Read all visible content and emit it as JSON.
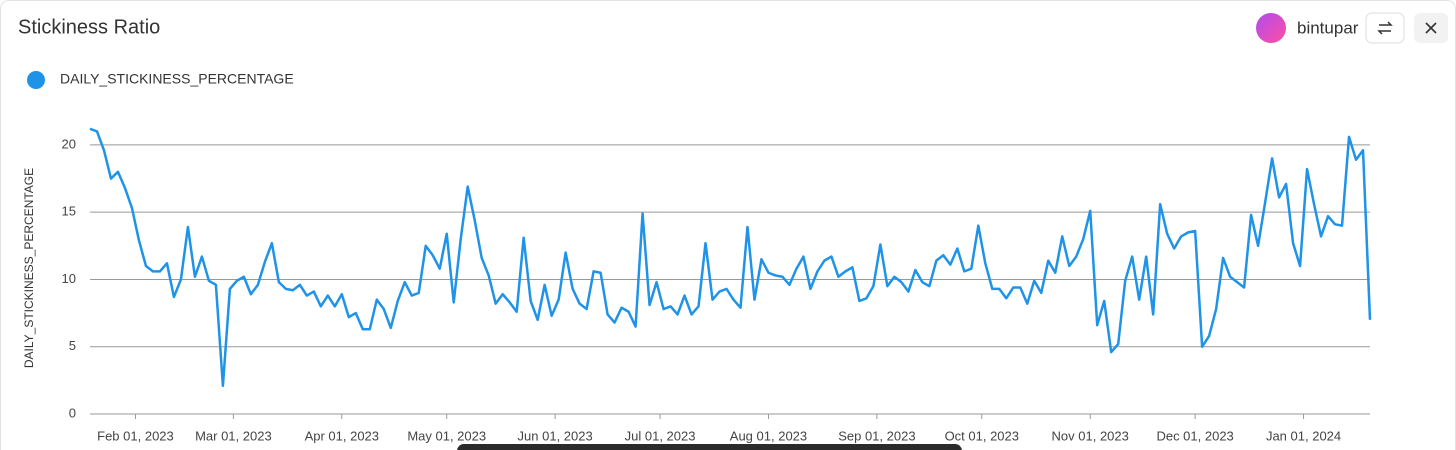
{
  "header": {
    "title": "Stickiness Ratio",
    "user": "bintupar"
  },
  "chart_data": {
    "type": "line",
    "y_label": "DAILY_STICKINESS_PERCENTAGE",
    "x": [
      "2023-01-19",
      "2023-01-21",
      "2023-01-23",
      "2023-01-25",
      "2023-01-27",
      "2023-01-29",
      "2023-01-31",
      "2023-02-02",
      "2023-02-04",
      "2023-02-06",
      "2023-02-08",
      "2023-02-10",
      "2023-02-12",
      "2023-02-14",
      "2023-02-16",
      "2023-02-18",
      "2023-02-20",
      "2023-02-22",
      "2023-02-24",
      "2023-02-26",
      "2023-02-28",
      "2023-03-02",
      "2023-03-04",
      "2023-03-06",
      "2023-03-08",
      "2023-03-10",
      "2023-03-12",
      "2023-03-14",
      "2023-03-16",
      "2023-03-18",
      "2023-03-20",
      "2023-03-22",
      "2023-03-24",
      "2023-03-26",
      "2023-03-28",
      "2023-03-30",
      "2023-04-01",
      "2023-04-03",
      "2023-04-05",
      "2023-04-07",
      "2023-04-09",
      "2023-04-11",
      "2023-04-13",
      "2023-04-15",
      "2023-04-17",
      "2023-04-19",
      "2023-04-21",
      "2023-04-23",
      "2023-04-25",
      "2023-04-27",
      "2023-04-29",
      "2023-05-01",
      "2023-05-03",
      "2023-05-05",
      "2023-05-07",
      "2023-05-09",
      "2023-05-11",
      "2023-05-13",
      "2023-05-15",
      "2023-05-17",
      "2023-05-19",
      "2023-05-21",
      "2023-05-23",
      "2023-05-25",
      "2023-05-27",
      "2023-05-29",
      "2023-05-31",
      "2023-06-02",
      "2023-06-04",
      "2023-06-06",
      "2023-06-08",
      "2023-06-10",
      "2023-06-12",
      "2023-06-14",
      "2023-06-16",
      "2023-06-18",
      "2023-06-20",
      "2023-06-22",
      "2023-06-24",
      "2023-06-26",
      "2023-06-28",
      "2023-06-30",
      "2023-07-02",
      "2023-07-04",
      "2023-07-06",
      "2023-07-08",
      "2023-07-10",
      "2023-07-12",
      "2023-07-14",
      "2023-07-16",
      "2023-07-18",
      "2023-07-20",
      "2023-07-22",
      "2023-07-24",
      "2023-07-26",
      "2023-07-28",
      "2023-07-30",
      "2023-08-01",
      "2023-08-03",
      "2023-08-05",
      "2023-08-07",
      "2023-08-09",
      "2023-08-11",
      "2023-08-13",
      "2023-08-15",
      "2023-08-17",
      "2023-08-19",
      "2023-08-21",
      "2023-08-23",
      "2023-08-25",
      "2023-08-27",
      "2023-08-29",
      "2023-08-31",
      "2023-09-02",
      "2023-09-04",
      "2023-09-06",
      "2023-09-08",
      "2023-09-10",
      "2023-09-12",
      "2023-09-14",
      "2023-09-16",
      "2023-09-18",
      "2023-09-20",
      "2023-09-22",
      "2023-09-24",
      "2023-09-26",
      "2023-09-28",
      "2023-09-30",
      "2023-10-02",
      "2023-10-04",
      "2023-10-06",
      "2023-10-08",
      "2023-10-10",
      "2023-10-12",
      "2023-10-14",
      "2023-10-16",
      "2023-10-18",
      "2023-10-20",
      "2023-10-22",
      "2023-10-24",
      "2023-10-26",
      "2023-10-28",
      "2023-10-30",
      "2023-11-01",
      "2023-11-03",
      "2023-11-05",
      "2023-11-07",
      "2023-11-09",
      "2023-11-11",
      "2023-11-13",
      "2023-11-15",
      "2023-11-17",
      "2023-11-19",
      "2023-11-21",
      "2023-11-23",
      "2023-11-25",
      "2023-11-27",
      "2023-11-29",
      "2023-12-01",
      "2023-12-03",
      "2023-12-05",
      "2023-12-07",
      "2023-12-09",
      "2023-12-11",
      "2023-12-13",
      "2023-12-15",
      "2023-12-17",
      "2023-12-19",
      "2023-12-21",
      "2023-12-23",
      "2023-12-25",
      "2023-12-27",
      "2023-12-29",
      "2023-12-31",
      "2024-01-02",
      "2024-01-04",
      "2024-01-06",
      "2024-01-08",
      "2024-01-10",
      "2024-01-12",
      "2024-01-14",
      "2024-01-16",
      "2024-01-18",
      "2024-01-20"
    ],
    "series": [
      {
        "name": "DAILY_STICKINESS_PERCENTAGE",
        "color": "#1f93e8",
        "values": [
          21.2,
          21.0,
          19.6,
          17.5,
          18.0,
          16.8,
          15.3,
          12.9,
          11.0,
          10.6,
          10.6,
          11.2,
          8.7,
          10.0,
          13.9,
          10.2,
          11.7,
          9.9,
          9.6,
          2.1,
          9.3,
          9.9,
          10.2,
          8.9,
          9.6,
          11.3,
          12.7,
          9.8,
          9.3,
          9.2,
          9.6,
          8.8,
          9.1,
          8.0,
          8.8,
          8.0,
          8.9,
          7.2,
          7.5,
          6.3,
          6.3,
          8.5,
          7.8,
          6.4,
          8.4,
          9.8,
          8.8,
          9.0,
          12.5,
          11.8,
          10.8,
          13.4,
          8.3,
          13.0,
          16.9,
          14.4,
          11.6,
          10.3,
          8.2,
          8.9,
          8.3,
          7.6,
          13.1,
          8.4,
          7.0,
          9.6,
          7.3,
          8.5,
          12.0,
          9.3,
          8.2,
          7.8,
          10.6,
          10.5,
          7.4,
          6.8,
          7.9,
          7.6,
          6.5,
          14.9,
          8.1,
          9.8,
          7.8,
          8.0,
          7.4,
          8.8,
          7.4,
          8.0,
          12.7,
          8.5,
          9.1,
          9.3,
          8.5,
          7.9,
          13.9,
          8.5,
          11.5,
          10.5,
          10.3,
          10.2,
          9.6,
          10.8,
          11.7,
          9.3,
          10.6,
          11.4,
          11.7,
          10.2,
          10.6,
          10.9,
          8.4,
          8.6,
          9.5,
          12.6,
          9.5,
          10.2,
          9.8,
          9.1,
          10.7,
          9.8,
          9.5,
          11.4,
          11.8,
          11.1,
          12.3,
          10.6,
          10.8,
          14.0,
          11.2,
          9.3,
          9.3,
          8.6,
          9.4,
          9.4,
          8.2,
          9.9,
          9.0,
          11.4,
          10.5,
          13.2,
          11.0,
          11.7,
          13.0,
          15.1,
          6.6,
          8.4,
          4.6,
          5.2,
          9.9,
          11.7,
          8.5,
          11.7,
          7.4,
          15.6,
          13.4,
          12.3,
          13.2,
          13.5,
          13.6,
          5.0,
          5.8,
          7.8,
          11.6,
          10.2,
          9.8,
          9.4,
          14.8,
          12.5,
          15.7,
          19.0,
          16.1,
          17.1,
          12.7,
          11.0,
          18.2,
          15.6,
          13.2,
          14.7,
          14.1,
          14.0,
          20.6,
          18.9,
          19.6,
          7.0
        ]
      }
    ],
    "xlim": [
      "2023-01-19",
      "2024-01-20"
    ],
    "xticks": [
      {
        "value": "2023-02-01",
        "label": "Feb 01, 2023"
      },
      {
        "value": "2023-03-01",
        "label": "Mar 01, 2023"
      },
      {
        "value": "2023-04-01",
        "label": "Apr 01, 2023"
      },
      {
        "value": "2023-05-01",
        "label": "May 01, 2023"
      },
      {
        "value": "2023-06-01",
        "label": "Jun 01, 2023"
      },
      {
        "value": "2023-07-01",
        "label": "Jul 01, 2023"
      },
      {
        "value": "2023-08-01",
        "label": "Aug 01, 2023"
      },
      {
        "value": "2023-09-01",
        "label": "Sep 01, 2023"
      },
      {
        "value": "2023-10-01",
        "label": "Oct 01, 2023"
      },
      {
        "value": "2023-11-01",
        "label": "Nov 01, 2023"
      },
      {
        "value": "2023-12-01",
        "label": "Dec 01, 2023"
      },
      {
        "value": "2024-01-01",
        "label": "Jan 01, 2024"
      }
    ],
    "ylim": [
      0,
      22
    ],
    "yticks": [
      0,
      5,
      10,
      15,
      20
    ],
    "grid": true
  }
}
